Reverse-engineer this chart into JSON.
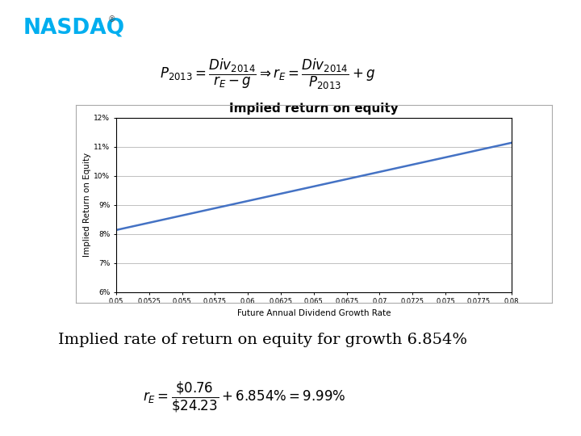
{
  "title": "Implied return on equity",
  "xlabel": "Future Annual Dividend Growth Rate",
  "ylabel": "Implied Return on Equity",
  "div": 0.76,
  "price": 24.23,
  "x_ticks": [
    0.05,
    0.0525,
    0.055,
    0.0575,
    0.06,
    0.0625,
    0.065,
    0.0675,
    0.07,
    0.0725,
    0.075,
    0.0775,
    0.08
  ],
  "x_tick_labels": [
    "0.05",
    "0.0525",
    "0.055",
    "0.0575",
    "0.06",
    "0.0625",
    "0.065",
    "0.0675",
    "0.07",
    "0.0725",
    "0.075",
    "0.0775",
    "0.08"
  ],
  "y_ticks": [
    0.06,
    0.07,
    0.08,
    0.09,
    0.1,
    0.11,
    0.12
  ],
  "y_tick_labels": [
    "6%",
    "7%",
    "8%",
    "9%",
    "10%",
    "11%",
    "12%"
  ],
  "ylim": [
    0.06,
    0.12
  ],
  "line_color": "#4472C4",
  "line_width": 1.8,
  "background_color": "#ffffff",
  "grid_color": "#c0c0c0",
  "title_fontsize": 11,
  "axis_label_fontsize": 7.5,
  "tick_fontsize": 6.5,
  "text_line1": "Implied rate of return on equity for growth 6.854%",
  "text_fontsize": 14,
  "nasdaq_color": "#00AEEF",
  "formula_top": "$P_{2013} = \\dfrac{Div_{2014}}{r_E - g} \\Rightarrow r_E = \\dfrac{Div_{2014}}{P_{2013}} + g$",
  "formula_bottom": "$r_E = \\dfrac{\\$0.76}{\\$24.23} + 6.854\\% = 9.99\\%$"
}
